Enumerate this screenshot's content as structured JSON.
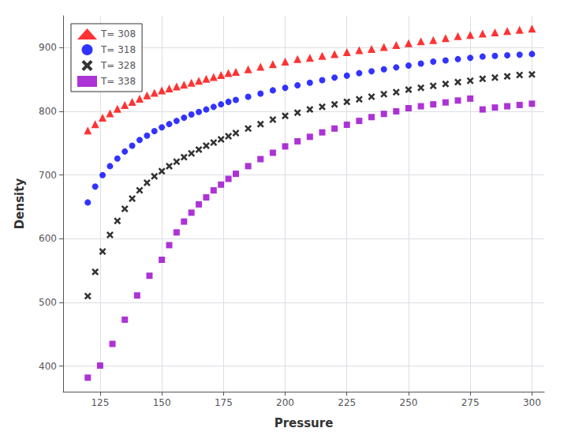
{
  "chart_data": {
    "type": "scatter",
    "xlabel": "Pressure",
    "ylabel": "Density",
    "series": [
      {
        "name": "T= 308",
        "color": "#ff0000",
        "marker": "triangle",
        "x": [
          120,
          123,
          126,
          129,
          132,
          135,
          138,
          141,
          144,
          147,
          150,
          153,
          156,
          159,
          162,
          165,
          168,
          171,
          174,
          177,
          180,
          185,
          190,
          195,
          200,
          205,
          210,
          215,
          220,
          225,
          230,
          235,
          240,
          245,
          250,
          255,
          260,
          265,
          270,
          275,
          280,
          285,
          290,
          295,
          300
        ],
        "values": [
          770,
          780,
          790,
          797,
          804,
          810,
          815,
          820,
          825,
          829,
          833,
          836,
          839,
          842,
          845,
          848,
          851,
          854,
          857,
          860,
          862,
          866,
          870,
          874,
          878,
          882,
          884,
          887,
          890,
          893,
          896,
          898,
          901,
          904,
          907,
          910,
          912,
          915,
          918,
          920,
          922,
          924,
          926,
          928,
          930
        ]
      },
      {
        "name": "T= 318",
        "color": "#0000ff",
        "marker": "circle",
        "x": [
          120,
          123,
          126,
          129,
          132,
          135,
          138,
          141,
          144,
          147,
          150,
          153,
          156,
          159,
          162,
          165,
          168,
          171,
          174,
          177,
          180,
          185,
          190,
          195,
          200,
          205,
          210,
          215,
          220,
          225,
          230,
          235,
          240,
          245,
          250,
          255,
          260,
          265,
          270,
          275,
          280,
          285,
          290,
          295,
          300
        ],
        "values": [
          657,
          682,
          700,
          714,
          726,
          737,
          746,
          755,
          762,
          769,
          775,
          780,
          785,
          790,
          795,
          799,
          803,
          807,
          811,
          815,
          818,
          823,
          828,
          833,
          837,
          841,
          845,
          849,
          853,
          856,
          860,
          863,
          866,
          869,
          872,
          875,
          878,
          880,
          882,
          884,
          886,
          887,
          888,
          889,
          890
        ]
      },
      {
        "name": "T= 328",
        "color": "#000000",
        "marker": "x",
        "x": [
          120,
          123,
          126,
          129,
          132,
          135,
          138,
          141,
          144,
          147,
          150,
          153,
          156,
          159,
          162,
          165,
          168,
          171,
          174,
          177,
          180,
          185,
          190,
          195,
          200,
          205,
          210,
          215,
          220,
          225,
          230,
          235,
          240,
          245,
          250,
          255,
          260,
          265,
          270,
          275,
          280,
          285,
          290,
          295,
          300
        ],
        "values": [
          510,
          548,
          580,
          606,
          628,
          647,
          663,
          676,
          688,
          698,
          706,
          714,
          721,
          728,
          734,
          740,
          746,
          751,
          756,
          761,
          766,
          773,
          780,
          787,
          793,
          798,
          803,
          807,
          811,
          815,
          819,
          823,
          827,
          830,
          834,
          837,
          840,
          843,
          846,
          848,
          851,
          853,
          855,
          857,
          858
        ]
      },
      {
        "name": "T= 338",
        "color": "#9900cc",
        "marker": "square",
        "x": [
          120,
          125,
          130,
          135,
          140,
          145,
          150,
          153,
          156,
          159,
          162,
          165,
          168,
          171,
          174,
          177,
          180,
          185,
          190,
          195,
          200,
          205,
          210,
          215,
          220,
          225,
          230,
          235,
          240,
          245,
          250,
          255,
          260,
          265,
          270,
          275,
          280,
          285,
          290,
          295,
          300
        ],
        "values": [
          382,
          401,
          435,
          473,
          511,
          542,
          567,
          590,
          610,
          627,
          641,
          654,
          665,
          676,
          685,
          694,
          702,
          714,
          725,
          735,
          745,
          753,
          760,
          767,
          773,
          779,
          785,
          791,
          796,
          800,
          805,
          808,
          811,
          814,
          817,
          820,
          803,
          806,
          808,
          810,
          812
        ]
      }
    ],
    "xlim": [
      110,
      305
    ],
    "ylim": [
      360,
      950
    ],
    "xticks": [
      125,
      150,
      175,
      200,
      225,
      250,
      275,
      300
    ],
    "yticks": [
      400,
      500,
      600,
      700,
      800,
      900
    ],
    "grid": true,
    "legend": "upper left"
  }
}
